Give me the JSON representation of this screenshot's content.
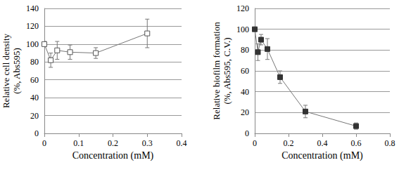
{
  "chart_data": [
    {
      "type": "line",
      "x_label": "Concentration (mM)",
      "y_label": "Relative cell density\n(%, Abs595)",
      "x": [
        0,
        0.01875,
        0.0375,
        0.075,
        0.15,
        0.3
      ],
      "values": [
        100,
        82,
        93,
        91,
        90,
        112
      ],
      "errors": [
        3,
        8,
        10,
        8,
        6,
        16
      ],
      "color": "#555555",
      "marker": "square-open",
      "xlim": [
        0,
        0.4
      ],
      "xticks": [
        0,
        0.1,
        0.2,
        0.3,
        0.4
      ],
      "ylim": [
        0,
        140
      ],
      "yticks": [
        0,
        20,
        40,
        60,
        80,
        100,
        120,
        140
      ],
      "grid": true
    },
    {
      "type": "line",
      "x_label": "Concentration (mM)",
      "y_label": "Relative biofilm formation\n(%, Abs595, C.V.)",
      "x": [
        0,
        0.01875,
        0.0375,
        0.075,
        0.15,
        0.3,
        0.6
      ],
      "values": [
        100,
        78,
        90,
        81,
        54,
        21,
        7
      ],
      "errors": [
        0,
        8,
        5,
        10,
        6,
        6,
        3
      ],
      "color": "#333333",
      "marker": "square",
      "xlim": [
        0,
        0.8
      ],
      "xticks": [
        0,
        0.2,
        0.4,
        0.6,
        0.8
      ],
      "ylim": [
        0,
        120
      ],
      "yticks": [
        0,
        20,
        40,
        60,
        80,
        100,
        120
      ],
      "grid": true
    }
  ]
}
